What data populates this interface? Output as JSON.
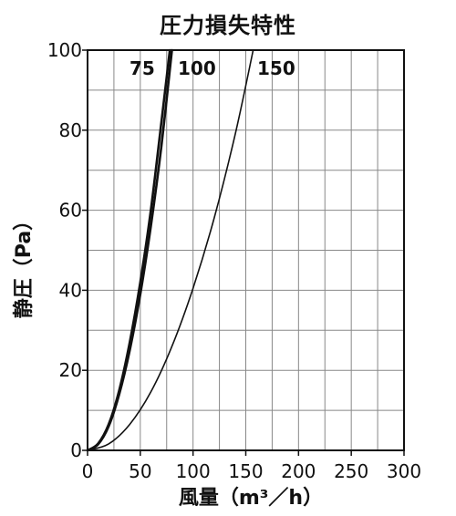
{
  "chart_data": {
    "type": "line",
    "title": "圧力損失特性",
    "xlabel": "風量（m³／h）",
    "ylabel": "静圧（Pa）",
    "xlim": [
      0,
      300
    ],
    "ylim": [
      0,
      100
    ],
    "xticks": [
      "0",
      "50",
      "100",
      "150",
      "200",
      "250",
      "300"
    ],
    "yticks": [
      "0",
      "20",
      "40",
      "60",
      "80",
      "100"
    ],
    "grid": true,
    "series": [
      {
        "name": "75",
        "x": [
          0,
          10,
          20,
          30,
          40,
          50,
          60,
          70,
          80
        ],
        "y": [
          0,
          1.5,
          6,
          14,
          25,
          39,
          56,
          76,
          100
        ]
      },
      {
        "name": "100",
        "x": [
          0,
          10,
          20,
          30,
          40,
          50,
          60,
          70,
          78
        ],
        "y": [
          0,
          1.7,
          6.5,
          15,
          27,
          42,
          60,
          82,
          100
        ]
      },
      {
        "name": "150",
        "x": [
          0,
          20,
          40,
          60,
          80,
          100,
          120,
          140,
          157
        ],
        "y": [
          0,
          1.6,
          6.5,
          14.6,
          26,
          40.5,
          58,
          79,
          100
        ]
      }
    ]
  }
}
